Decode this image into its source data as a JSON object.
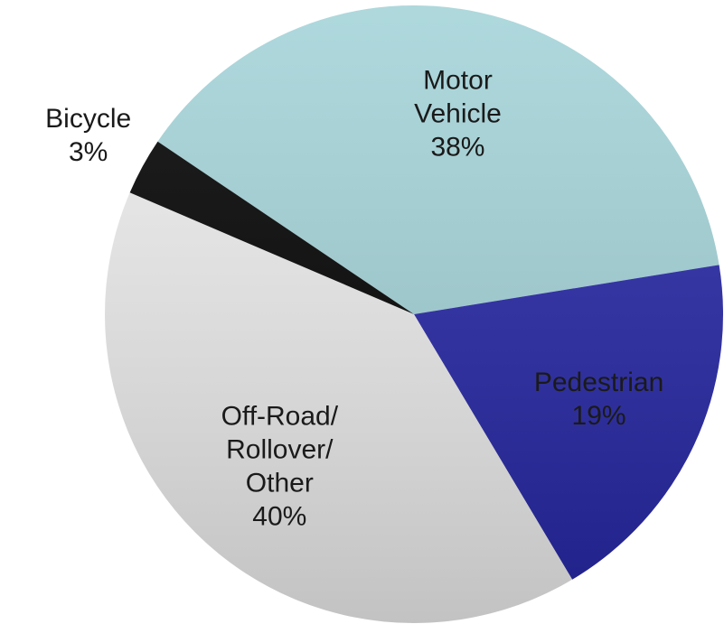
{
  "chart_data": {
    "type": "pie",
    "categories": [
      "Motor Vehicle",
      "Pedestrian",
      "Off-Road/Rollover/Other",
      "Bicycle"
    ],
    "values": [
      38,
      19,
      40,
      3
    ],
    "value_labels": [
      "38%",
      "19%",
      "40%",
      "3%"
    ],
    "colors": [
      "#a3d3d8",
      "#2626a6",
      "#ededed",
      "#000000"
    ]
  }
}
